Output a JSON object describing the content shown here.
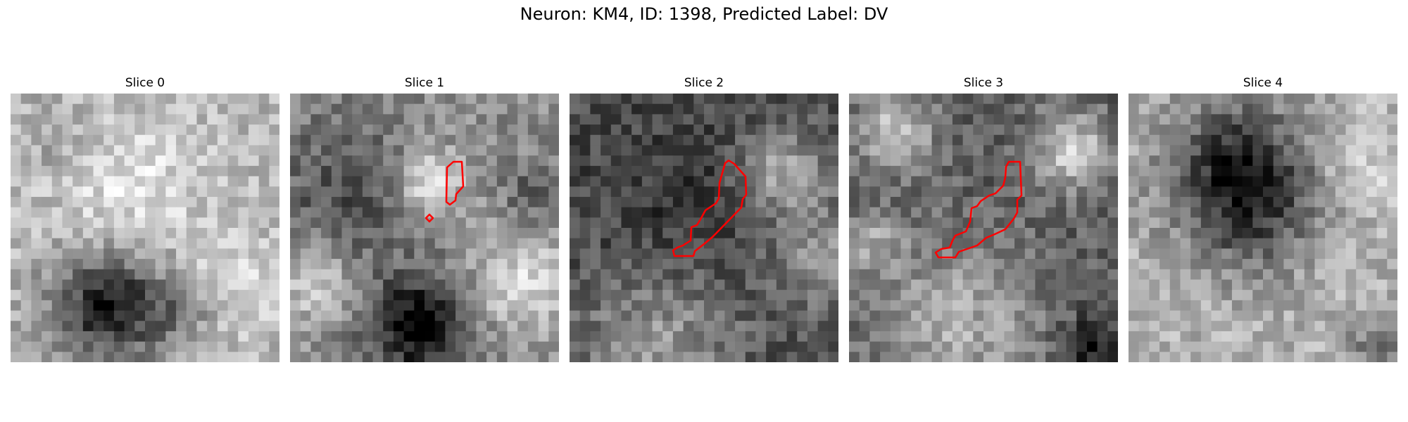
{
  "figure": {
    "title": "Neuron: KM4, ID: 1398, Predicted Label: DV",
    "contour_color": "#ff0000"
  },
  "panels": [
    {
      "title": "Slice 0",
      "image": "grayscale-noise-slice-0",
      "has_contour": false
    },
    {
      "title": "Slice 1",
      "image": "grayscale-noise-slice-1",
      "has_contour": true
    },
    {
      "title": "Slice 2",
      "image": "grayscale-noise-slice-2",
      "has_contour": true
    },
    {
      "title": "Slice 3",
      "image": "grayscale-noise-slice-3",
      "has_contour": true
    },
    {
      "title": "Slice 4",
      "image": "grayscale-noise-slice-4",
      "has_contour": false
    }
  ]
}
